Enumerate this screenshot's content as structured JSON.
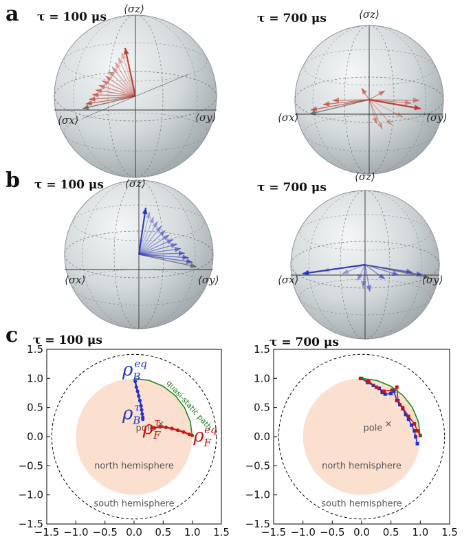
{
  "panels": {
    "a": {
      "label": "a",
      "spheres": [
        {
          "tau": "τ = 100 μs",
          "axes": {
            "z": "⟨σz⟩",
            "x": "⟨σx⟩",
            "y": "⟨σy⟩"
          },
          "color": "#c0392b"
        },
        {
          "tau": "τ = 700 μs",
          "axes": {
            "z": "⟨σz⟩",
            "x": "⟨σx⟩",
            "y": "⟨σy⟩"
          },
          "color": "#c0392b"
        }
      ]
    },
    "b": {
      "label": "b",
      "spheres": [
        {
          "tau": "τ = 100 μs",
          "axes": {
            "z": "⟨σz⟩",
            "x": "⟨σx⟩",
            "y": "⟨σy⟩"
          },
          "color": "#2a36b8"
        },
        {
          "tau": "τ = 700 μs",
          "axes": {
            "z": "⟨σz⟩",
            "x": "⟨σx⟩",
            "y": "⟨σy⟩"
          },
          "color": "#2a36b8"
        }
      ]
    },
    "c": {
      "label": "c"
    }
  },
  "chart_data": [
    {
      "type": "line",
      "title": "τ = 100 μs",
      "xlim": [
        -1.5,
        1.5
      ],
      "ylim": [
        -1.5,
        1.5
      ],
      "xticks": [
        "−1.5",
        "−1.0",
        "−0.5",
        "0.0",
        "0.5",
        "1.0",
        "1.5"
      ],
      "yticks": [
        "1.5",
        "1.0",
        "0.5",
        "0.0",
        "−0.5",
        "−1.0",
        "−1.5"
      ],
      "annotations": {
        "pole": "pole",
        "pole_mark": "×",
        "north": "north hemisphere",
        "south": "south hemisphere",
        "path": "quasi-static path",
        "rho_B_eq": {
          "base": "ρ",
          "sub": "B",
          "sup": "eq"
        },
        "rho_B_tau": {
          "base": "ρ",
          "sub": "B",
          "sup": "τ"
        },
        "rho_F_tau": {
          "base": "ρ",
          "sub": "F",
          "sup": "τ"
        },
        "rho_F_eq": {
          "base": "ρ",
          "sub": "F",
          "sup": "eq"
        }
      },
      "regions": {
        "inner_disk_radius": 1.0,
        "outer_circle_radius": 1.414
      },
      "series": [
        {
          "name": "ρB",
          "color": "#2233cc",
          "x": [
            0.02,
            0.04,
            0.06,
            0.08,
            0.1,
            0.12,
            0.13,
            0.14,
            0.15,
            0.15
          ],
          "y": [
            0.95,
            0.85,
            0.78,
            0.7,
            0.62,
            0.53,
            0.46,
            0.39,
            0.33,
            0.3
          ]
        },
        {
          "name": "ρF",
          "color": "#cc1111",
          "x": [
            0.35,
            0.45,
            0.55,
            0.65,
            0.75,
            0.85,
            0.95,
            1.0
          ],
          "y": [
            0.15,
            0.17,
            0.16,
            0.14,
            0.11,
            0.08,
            0.04,
            0.02
          ]
        },
        {
          "name": "quasi-static path",
          "color": "#1a8c1a",
          "x": [
            0.0,
            0.259,
            0.5,
            0.707,
            0.866,
            0.966,
            1.0
          ],
          "y": [
            1.0,
            0.966,
            0.866,
            0.707,
            0.5,
            0.259,
            0.0
          ]
        }
      ]
    },
    {
      "type": "line",
      "title": "τ = 700 μs",
      "xlim": [
        -1.5,
        1.5
      ],
      "ylim": [
        -1.5,
        1.5
      ],
      "xticks": [
        "−1.5",
        "−1.0",
        "−0.5",
        "0.0",
        "0.5",
        "1.0",
        "1.5"
      ],
      "yticks": [
        "1.5",
        "1.0",
        "0.5",
        "0.0",
        "−0.5",
        "−1.0",
        "−1.5"
      ],
      "annotations": {
        "pole": "pole",
        "pole_mark": "×",
        "north": "north hemisphere",
        "south": "south hemisphere"
      },
      "regions": {
        "inner_disk_radius": 1.0,
        "outer_circle_radius": 1.414
      },
      "series": [
        {
          "name": "ρB",
          "color": "#2233cc",
          "x": [
            0.0,
            0.1,
            0.2,
            0.3,
            0.35,
            0.4,
            0.5,
            0.55,
            0.6,
            0.65,
            0.7,
            0.75,
            0.8,
            0.85,
            0.9,
            0.92,
            0.95
          ],
          "y": [
            1.0,
            0.93,
            0.88,
            0.83,
            0.76,
            0.73,
            0.74,
            0.78,
            0.62,
            0.55,
            0.48,
            0.38,
            0.3,
            0.2,
            0.1,
            0.0,
            -0.12
          ]
        },
        {
          "name": "ρF",
          "color": "#cc1111",
          "x": [
            -0.02,
            0.12,
            0.25,
            0.38,
            0.52,
            0.6,
            0.62,
            0.7,
            0.8,
            0.9,
            0.95,
            1.0
          ],
          "y": [
            1.0,
            0.95,
            0.85,
            0.78,
            0.8,
            0.85,
            0.62,
            0.5,
            0.35,
            0.22,
            0.1,
            0.02
          ]
        },
        {
          "name": "quasi-static path",
          "color": "#1a8c1a",
          "x": [
            0.0,
            0.259,
            0.5,
            0.707,
            0.866,
            0.966,
            1.0
          ],
          "y": [
            1.0,
            0.966,
            0.866,
            0.707,
            0.5,
            0.259,
            0.0
          ]
        }
      ]
    }
  ]
}
